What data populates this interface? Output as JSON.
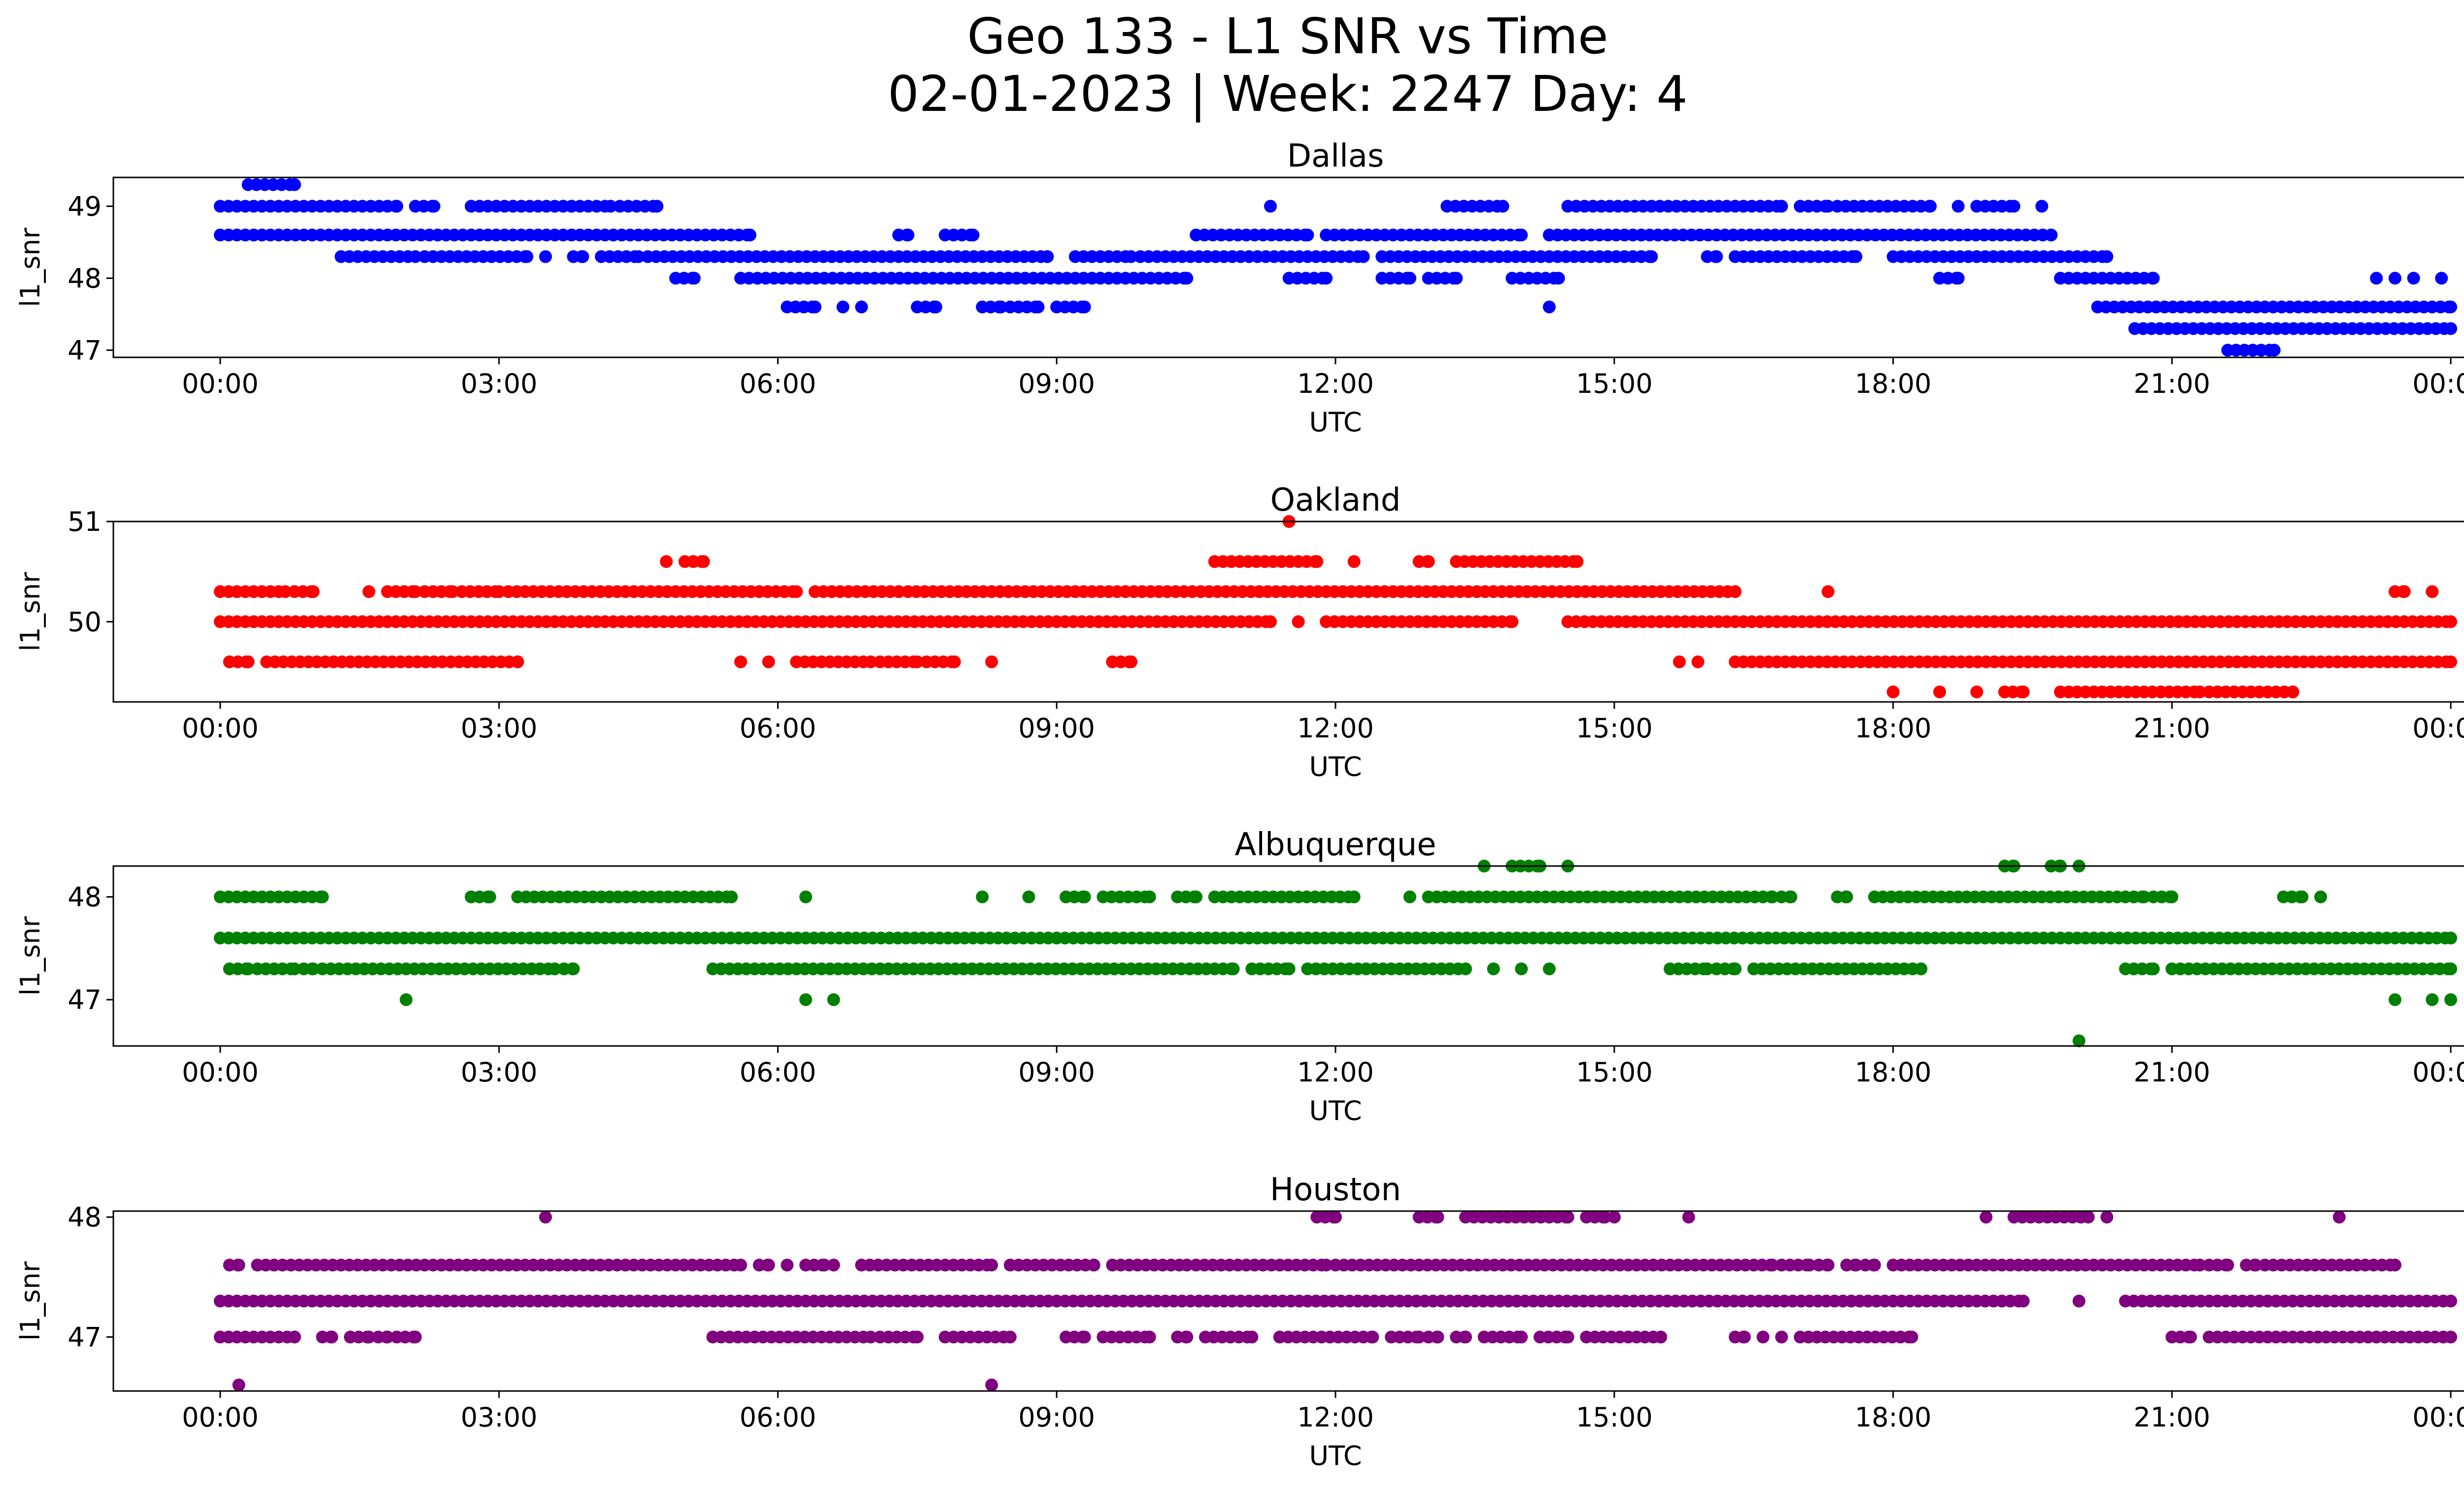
{
  "figure": {
    "title_line1": "Geo 133 - L1 SNR vs Time",
    "title_line2": "02-01-2023 | Week: 2247 Day: 4"
  },
  "chart_data": [
    {
      "type": "scatter",
      "title": "Dallas",
      "xlabel": "UTC",
      "ylabel": "l1_snr",
      "color": "#0000ff",
      "x_ticks": [
        "00:00",
        "03:00",
        "06:00",
        "09:00",
        "12:00",
        "15:00",
        "18:00",
        "21:00",
        "00:00"
      ],
      "x_range_hours": [
        -1.15,
        25.15
      ],
      "y_ticks": [
        47,
        48,
        49
      ],
      "ylim": [
        46.9,
        49.4
      ],
      "series": [
        {
          "y": 49.3,
          "ranges": [
            [
              0.3,
              0.8
            ]
          ]
        },
        {
          "y": 49.0,
          "ranges": [
            [
              0.0,
              1.9
            ],
            [
              2.1,
              2.3
            ],
            [
              2.7,
              4.2
            ],
            [
              4.3,
              4.7
            ],
            [
              11.3,
              11.3
            ],
            [
              13.2,
              13.8
            ],
            [
              14.5,
              16.8
            ],
            [
              17.0,
              17.3
            ],
            [
              17.4,
              18.4
            ],
            [
              18.7,
              18.7
            ],
            [
              18.9,
              19.3
            ],
            [
              19.6,
              19.6
            ]
          ]
        },
        {
          "y": 48.6,
          "ranges": [
            [
              0.0,
              5.7
            ],
            [
              7.3,
              7.4
            ],
            [
              7.8,
              8.1
            ],
            [
              10.5,
              11.7
            ],
            [
              11.9,
              14.0
            ],
            [
              14.3,
              19.7
            ]
          ]
        },
        {
          "y": 48.3,
          "ranges": [
            [
              1.3,
              2.1
            ],
            [
              2.2,
              3.3
            ],
            [
              3.5,
              3.5
            ],
            [
              3.8,
              3.9
            ],
            [
              4.1,
              4.5
            ],
            [
              4.6,
              8.9
            ],
            [
              9.2,
              9.8
            ],
            [
              9.9,
              12.3
            ],
            [
              12.5,
              15.4
            ],
            [
              16.0,
              16.1
            ],
            [
              16.3,
              17.6
            ],
            [
              18.0,
              20.3
            ]
          ]
        },
        {
          "y": 48.0,
          "ranges": [
            [
              4.9,
              5.1
            ],
            [
              5.6,
              10.4
            ],
            [
              11.5,
              11.9
            ],
            [
              12.5,
              12.8
            ],
            [
              13.0,
              13.3
            ],
            [
              13.9,
              14.4
            ],
            [
              18.5,
              18.7
            ],
            [
              19.8,
              20.8
            ]
          ]
        },
        {
          "y": 47.6,
          "ranges": [
            [
              6.1,
              6.4
            ],
            [
              6.7,
              6.7
            ],
            [
              6.9,
              6.9
            ],
            [
              7.5,
              7.7
            ],
            [
              8.2,
              8.4
            ],
            [
              8.5,
              8.8
            ],
            [
              9.0,
              9.3
            ],
            [
              14.3,
              14.3
            ],
            [
              20.2,
              24.0
            ]
          ]
        },
        {
          "y": 47.3,
          "ranges": [
            [
              20.6,
              24.0
            ]
          ]
        },
        {
          "y": 47.0,
          "ranges": [
            [
              21.6,
              22.1
            ]
          ]
        }
      ],
      "extra_points": [
        [
          23.2,
          48.0
        ],
        [
          23.4,
          48.0
        ],
        [
          23.6,
          48.0
        ],
        [
          23.9,
          48.0
        ]
      ]
    },
    {
      "type": "scatter",
      "title": "Oakland",
      "xlabel": "UTC",
      "ylabel": "l1_snr",
      "color": "#ff0000",
      "x_ticks": [
        "00:00",
        "03:00",
        "06:00",
        "09:00",
        "12:00",
        "15:00",
        "18:00",
        "21:00",
        "00:00"
      ],
      "x_range_hours": [
        -1.15,
        25.15
      ],
      "y_ticks": [
        50,
        51
      ],
      "ylim": [
        49.2,
        51.0
      ],
      "series": [
        {
          "y": 51.0,
          "ranges": [
            [
              11.5,
              11.5
            ]
          ]
        },
        {
          "y": 50.6,
          "ranges": [
            [
              4.8,
              4.8
            ],
            [
              5.0,
              5.2
            ],
            [
              10.7,
              11.8
            ],
            [
              12.2,
              12.2
            ],
            [
              12.9,
              13.0
            ],
            [
              13.3,
              14.6
            ]
          ]
        },
        {
          "y": 50.3,
          "ranges": [
            [
              0.0,
              0.7
            ],
            [
              0.8,
              1.0
            ],
            [
              1.6,
              1.6
            ],
            [
              1.8,
              2.1
            ],
            [
              2.2,
              2.5
            ],
            [
              2.6,
              3.0
            ],
            [
              3.1,
              6.2
            ],
            [
              6.4,
              7.3
            ],
            [
              7.4,
              16.3
            ],
            [
              17.3,
              17.3
            ],
            [
              23.4,
              23.5
            ],
            [
              23.8,
              23.8
            ]
          ]
        },
        {
          "y": 50.0,
          "ranges": [
            [
              0.0,
              11.3
            ],
            [
              11.6,
              11.6
            ],
            [
              11.9,
              13.9
            ],
            [
              14.5,
              24.0
            ]
          ]
        },
        {
          "y": 49.6,
          "ranges": [
            [
              0.1,
              0.3
            ],
            [
              0.5,
              3.2
            ],
            [
              5.6,
              5.6
            ],
            [
              5.9,
              5.9
            ],
            [
              6.2,
              7.0
            ],
            [
              7.1,
              7.5
            ],
            [
              7.6,
              7.9
            ],
            [
              8.3,
              8.3
            ],
            [
              9.6,
              9.8
            ],
            [
              15.7,
              15.7
            ],
            [
              15.9,
              15.9
            ],
            [
              16.3,
              24.0
            ]
          ]
        },
        {
          "y": 49.3,
          "ranges": [
            [
              18.0,
              18.0
            ],
            [
              18.5,
              18.5
            ],
            [
              18.9,
              18.9
            ],
            [
              19.2,
              19.4
            ],
            [
              19.8,
              21.3
            ],
            [
              21.4,
              22.3
            ]
          ]
        }
      ]
    },
    {
      "type": "scatter",
      "title": "Albuquerque",
      "xlabel": "UTC",
      "ylabel": "l1_snr",
      "color": "#008000",
      "x_ticks": [
        "00:00",
        "03:00",
        "06:00",
        "09:00",
        "12:00",
        "15:00",
        "18:00",
        "21:00",
        "00:00"
      ],
      "x_range_hours": [
        -1.15,
        25.15
      ],
      "y_ticks": [
        47,
        48
      ],
      "ylim": [
        46.55,
        48.3
      ],
      "series": [
        {
          "y": 48.3,
          "ranges": [
            [
              13.6,
              13.6
            ],
            [
              13.9,
              14.2
            ],
            [
              14.5,
              14.5
            ],
            [
              19.2,
              19.3
            ],
            [
              19.7,
              19.8
            ],
            [
              20.0,
              20.0
            ]
          ]
        },
        {
          "y": 48.0,
          "ranges": [
            [
              0.0,
              1.1
            ],
            [
              2.7,
              2.9
            ],
            [
              3.2,
              5.5
            ],
            [
              6.3,
              6.3
            ],
            [
              8.2,
              8.2
            ],
            [
              8.7,
              8.7
            ],
            [
              9.1,
              9.3
            ],
            [
              9.5,
              10.0
            ],
            [
              10.3,
              10.5
            ],
            [
              10.7,
              12.2
            ],
            [
              12.8,
              12.8
            ],
            [
              13.0,
              16.7
            ],
            [
              16.8,
              16.9
            ],
            [
              17.4,
              17.5
            ],
            [
              17.8,
              20.7
            ],
            [
              20.8,
              21.0
            ],
            [
              22.2,
              22.4
            ],
            [
              22.6,
              22.6
            ]
          ]
        },
        {
          "y": 47.6,
          "ranges": [
            [
              0.0,
              24.0
            ]
          ]
        },
        {
          "y": 47.3,
          "ranges": [
            [
              0.1,
              0.3
            ],
            [
              0.4,
              0.8
            ],
            [
              0.9,
              1.0
            ],
            [
              1.1,
              3.6
            ],
            [
              3.7,
              3.8
            ],
            [
              5.3,
              10.9
            ],
            [
              11.1,
              11.5
            ],
            [
              11.7,
              13.4
            ],
            [
              13.7,
              13.7
            ],
            [
              14.0,
              14.0
            ],
            [
              14.3,
              14.3
            ],
            [
              15.6,
              16.0
            ],
            [
              16.1,
              16.3
            ],
            [
              16.5,
              18.3
            ],
            [
              20.5,
              20.8
            ],
            [
              21.0,
              24.0
            ]
          ]
        },
        {
          "y": 47.0,
          "ranges": [
            [
              2.0,
              2.0
            ],
            [
              6.3,
              6.3
            ],
            [
              6.6,
              6.6
            ],
            [
              23.4,
              23.4
            ],
            [
              23.8,
              23.8
            ],
            [
              24.0,
              24.0
            ]
          ]
        },
        {
          "y": 46.6,
          "ranges": [
            [
              20.0,
              20.0
            ]
          ]
        }
      ]
    },
    {
      "type": "scatter",
      "title": "Houston",
      "xlabel": "UTC",
      "ylabel": "l1_snr",
      "color": "#800080",
      "x_ticks": [
        "00:00",
        "03:00",
        "06:00",
        "09:00",
        "12:00",
        "15:00",
        "18:00",
        "21:00",
        "00:00"
      ],
      "x_range_hours": [
        -1.15,
        25.15
      ],
      "y_ticks": [
        47,
        48
      ],
      "ylim": [
        46.55,
        48.05
      ],
      "series": [
        {
          "y": 48.0,
          "ranges": [
            [
              3.5,
              3.5
            ],
            [
              11.8,
              12.0
            ],
            [
              12.9,
              13.1
            ],
            [
              13.4,
              14.5
            ],
            [
              14.7,
              14.9
            ],
            [
              15.0,
              15.0
            ],
            [
              15.8,
              15.8
            ],
            [
              19.0,
              19.0
            ],
            [
              19.3,
              20.1
            ],
            [
              20.3,
              20.3
            ],
            [
              22.8,
              22.8
            ]
          ]
        },
        {
          "y": 47.6,
          "ranges": [
            [
              0.1,
              0.2
            ],
            [
              0.4,
              5.6
            ],
            [
              5.8,
              5.9
            ],
            [
              6.1,
              6.1
            ],
            [
              6.3,
              6.5
            ],
            [
              6.6,
              6.6
            ],
            [
              6.9,
              8.3
            ],
            [
              8.5,
              9.4
            ],
            [
              9.6,
              10.4
            ],
            [
              10.5,
              11.9
            ],
            [
              12.0,
              16.7
            ],
            [
              16.8,
              17.1
            ],
            [
              17.2,
              17.3
            ],
            [
              17.5,
              17.6
            ],
            [
              17.7,
              17.8
            ],
            [
              18.0,
              21.3
            ],
            [
              21.4,
              21.6
            ],
            [
              21.8,
              21.9
            ],
            [
              22.0,
              23.4
            ]
          ]
        },
        {
          "y": 47.3,
          "ranges": [
            [
              0.0,
              19.4
            ],
            [
              20.0,
              20.0
            ],
            [
              20.5,
              24.0
            ]
          ]
        },
        {
          "y": 47.0,
          "ranges": [
            [
              0.0,
              0.8
            ],
            [
              1.1,
              1.2
            ],
            [
              1.4,
              1.6
            ],
            [
              1.7,
              1.8
            ],
            [
              1.9,
              2.1
            ],
            [
              5.3,
              7.0
            ],
            [
              7.1,
              7.5
            ],
            [
              7.8,
              8.5
            ],
            [
              9.1,
              9.3
            ],
            [
              9.5,
              10.0
            ],
            [
              10.3,
              10.4
            ],
            [
              10.6,
              11.1
            ],
            [
              11.4,
              12.4
            ],
            [
              12.6,
              12.9
            ],
            [
              13.0,
              13.1
            ],
            [
              13.3,
              13.4
            ],
            [
              13.6,
              14.0
            ],
            [
              14.2,
              14.5
            ],
            [
              14.7,
              15.5
            ],
            [
              16.3,
              16.4
            ],
            [
              16.6,
              16.6
            ],
            [
              16.8,
              16.8
            ],
            [
              17.0,
              18.2
            ],
            [
              21.0,
              21.2
            ],
            [
              21.4,
              24.0
            ]
          ]
        },
        {
          "y": 46.6,
          "ranges": [
            [
              0.2,
              0.2
            ],
            [
              8.3,
              8.3
            ]
          ]
        }
      ]
    }
  ]
}
